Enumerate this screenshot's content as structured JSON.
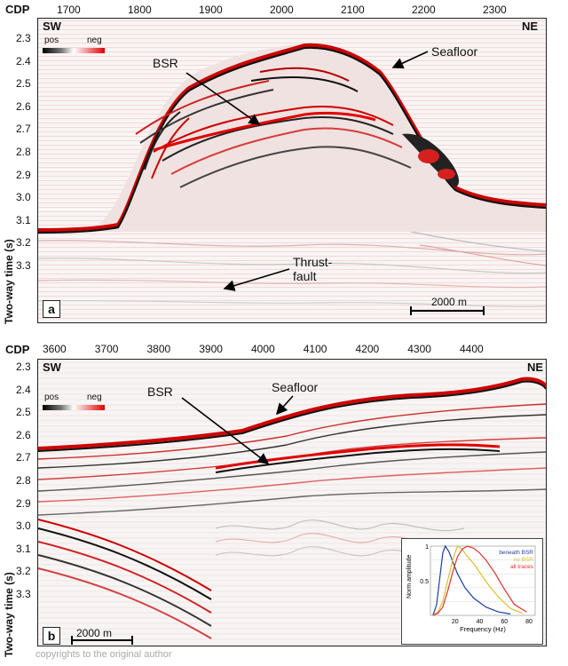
{
  "panel_a": {
    "cdp_label": "CDP",
    "cdp_ticks": [
      "1700",
      "1800",
      "1900",
      "2000",
      "2100",
      "2200",
      "2300"
    ],
    "twt_ticks": [
      "2.3",
      "2.4",
      "2.5",
      "2.6",
      "2.7",
      "2.8",
      "2.9",
      "3.0",
      "3.1",
      "3.2",
      "3.3"
    ],
    "dir_left": "SW",
    "dir_right": "NE",
    "colorbar": {
      "pos": "pos",
      "neg": "neg"
    },
    "annotations": {
      "bsr": "BSR",
      "seafloor": "Seafloor",
      "thrust": "Thrust-\nfault"
    },
    "scale_label": "2000 m",
    "panel_letter": "a",
    "yaxis_title": "Two-way time (s)"
  },
  "panel_b": {
    "cdp_label": "CDP",
    "cdp_ticks": [
      "3600",
      "3700",
      "3800",
      "3900",
      "4000",
      "4100",
      "4200",
      "4300",
      "4400"
    ],
    "twt_ticks": [
      "2.3",
      "2.4",
      "2.5",
      "2.6",
      "2.7",
      "2.8",
      "2.9",
      "3.0",
      "3.1",
      "3.2",
      "3.3"
    ],
    "dir_left": "SW",
    "dir_right": "NE",
    "colorbar": {
      "pos": "pos",
      "neg": "neg"
    },
    "annotations": {
      "bsr": "BSR",
      "seafloor": "Seafloor"
    },
    "scale_label": "2000 m",
    "panel_letter": "b",
    "yaxis_title": "Two-way time (s)"
  },
  "inset_chart": {
    "type": "line",
    "xlabel": "Frequency (Hz)",
    "ylabel": "Norm amplitude",
    "xticks": [
      "20",
      "40",
      "60",
      "80"
    ],
    "yticks": [
      "0.5",
      "1"
    ],
    "xlim": [
      0,
      85
    ],
    "ylim": [
      0,
      1
    ],
    "legend": [
      "beneath BSR",
      "no BSR",
      "all traces"
    ],
    "colors": {
      "beneath": "#1f3f9f",
      "nobsr": "#d9c230",
      "all": "#e23030"
    }
  },
  "chart_data": {
    "type": "line",
    "xlabel": "Frequency (Hz)",
    "ylabel": "Norm amplitude",
    "xlim": [
      0,
      85
    ],
    "ylim": [
      0,
      1
    ],
    "series": [
      {
        "name": "beneath BSR",
        "x": [
          2,
          5,
          8,
          10,
          12,
          15,
          18,
          22,
          28,
          35,
          45,
          55,
          65
        ],
        "y": [
          0.0,
          0.15,
          0.6,
          0.9,
          1.0,
          0.92,
          0.78,
          0.6,
          0.4,
          0.25,
          0.12,
          0.05,
          0.02
        ]
      },
      {
        "name": "no BSR",
        "x": [
          2,
          6,
          10,
          14,
          18,
          22,
          26,
          30,
          35,
          40,
          48,
          56,
          65,
          75
        ],
        "y": [
          0.0,
          0.05,
          0.2,
          0.5,
          0.8,
          1.0,
          0.95,
          0.85,
          0.75,
          0.62,
          0.42,
          0.25,
          0.1,
          0.03
        ]
      },
      {
        "name": "all traces",
        "x": [
          2,
          6,
          10,
          14,
          18,
          22,
          26,
          30,
          35,
          40,
          45,
          52,
          60,
          68,
          78
        ],
        "y": [
          0.0,
          0.03,
          0.12,
          0.35,
          0.62,
          0.85,
          0.96,
          1.0,
          0.97,
          0.9,
          0.8,
          0.62,
          0.38,
          0.16,
          0.05
        ]
      }
    ]
  },
  "watermark": "copyrights to the original author"
}
